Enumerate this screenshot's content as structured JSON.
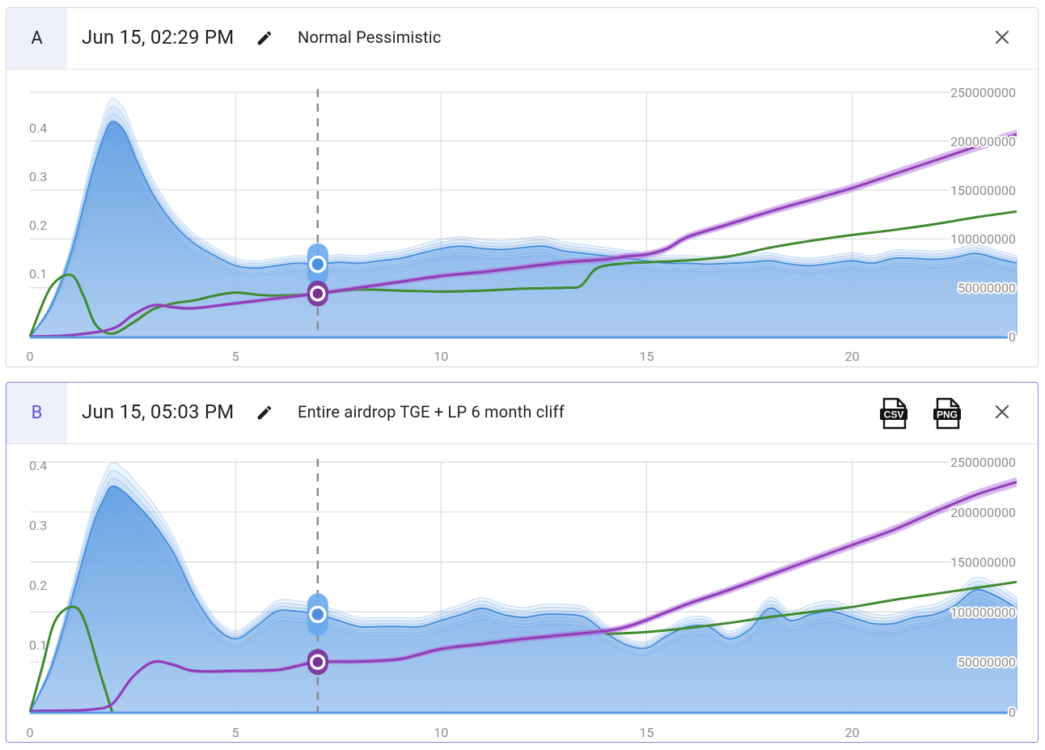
{
  "panels": [
    {
      "letter": "A",
      "date": "Jun 15, 02:29 PM",
      "scenario": "Normal Pessimistic",
      "selected": false,
      "icons": {
        "edit": "pencil-icon",
        "close": "close-icon"
      },
      "chart_data": {
        "type": "area",
        "x_ticks": [
          "0",
          "5",
          "10",
          "15",
          "20"
        ],
        "xlim": [
          0,
          24
        ],
        "y_left_ticks": [
          "0.1",
          "0.2",
          "0.3",
          "0.4"
        ],
        "ylim_left": [
          0,
          0.5
        ],
        "y_right_ticks": [
          "0",
          "50000000",
          "100000000",
          "150000000",
          "200000000",
          "250000000"
        ],
        "ylim_right": [
          0,
          250000000
        ],
        "cursor_x": 7,
        "series": [
          {
            "name": "price",
            "axis": "left",
            "color": "#5aa0e6",
            "x": [
              0,
              0.5,
              1,
              1.5,
              1.8,
              2,
              2.3,
              2.6,
              3,
              3.5,
              4,
              4.5,
              5,
              5.5,
              6,
              6.5,
              7,
              7.5,
              8,
              8.5,
              9,
              9.5,
              10,
              10.5,
              11,
              11.5,
              12,
              12.5,
              13,
              13.5,
              14,
              14.5,
              15,
              15.5,
              16,
              16.5,
              17,
              17.5,
              18,
              18.5,
              19,
              19.5,
              20,
              20.5,
              21,
              21.5,
              22,
              22.5,
              23,
              23.5,
              24
            ],
            "values": [
              0,
              0.06,
              0.17,
              0.33,
              0.41,
              0.44,
              0.42,
              0.36,
              0.29,
              0.23,
              0.19,
              0.165,
              0.145,
              0.14,
              0.145,
              0.15,
              0.148,
              0.152,
              0.15,
              0.155,
              0.16,
              0.17,
              0.18,
              0.185,
              0.18,
              0.178,
              0.182,
              0.185,
              0.175,
              0.17,
              0.165,
              0.16,
              0.155,
              0.15,
              0.15,
              0.148,
              0.15,
              0.152,
              0.155,
              0.148,
              0.145,
              0.15,
              0.155,
              0.15,
              0.16,
              0.16,
              0.158,
              0.162,
              0.17,
              0.16,
              0.15
            ]
          },
          {
            "name": "supply",
            "axis": "right",
            "color": "#8e3fb8",
            "x": [
              0,
              1,
              2,
              2.5,
              3,
              3.5,
              4,
              5,
              6,
              7,
              8,
              9,
              10,
              11,
              12,
              13,
              14,
              14.5,
              15,
              15.5,
              16,
              17,
              18,
              19,
              20,
              21,
              22,
              23,
              24
            ],
            "values": [
              0,
              1500000,
              8000000,
              22000000,
              32000000,
              30000000,
              29000000,
              34000000,
              39000000,
              44000000,
              50000000,
              56000000,
              62000000,
              66000000,
              71000000,
              76000000,
              79000000,
              82000000,
              84000000,
              90000000,
              102000000,
              115000000,
              128000000,
              140000000,
              152000000,
              166000000,
              180000000,
              194000000,
              207000000
            ]
          },
          {
            "name": "circulating",
            "axis": "right",
            "color": "#3f8a2f",
            "x": [
              0,
              0.5,
              1,
              1.3,
              1.6,
              2,
              2.5,
              3,
              3.5,
              4,
              4.5,
              5,
              5.5,
              6,
              7,
              8,
              9,
              10,
              11,
              12,
              13,
              13.4,
              13.8,
              14.5,
              15,
              16,
              17,
              18,
              19,
              20,
              21,
              22,
              23,
              24
            ],
            "values": [
              0,
              50000000,
              63000000,
              42000000,
              12000000,
              3000000,
              14000000,
              28000000,
              34000000,
              37000000,
              42000000,
              45000000,
              43000000,
              42000000,
              44000000,
              48000000,
              47000000,
              46000000,
              47000000,
              49000000,
              50000000,
              52000000,
              70000000,
              75000000,
              76000000,
              78000000,
              82000000,
              91000000,
              98000000,
              104000000,
              109000000,
              115000000,
              122000000,
              128000000
            ]
          }
        ],
        "markers": [
          {
            "series": "price",
            "x": 7
          },
          {
            "series": "supply",
            "x": 7
          }
        ]
      }
    },
    {
      "letter": "B",
      "date": "Jun 15, 05:03 PM",
      "scenario": "Entire airdrop TGE + LP 6 month cliff",
      "selected": true,
      "icons": {
        "edit": "pencil-icon",
        "csv": "csv-file-icon",
        "png": "png-file-icon",
        "close": "close-icon"
      },
      "csv_label": "CSV",
      "png_label": "PNG",
      "chart_data": {
        "type": "area",
        "x_ticks": [
          "0",
          "5",
          "10",
          "15",
          "20"
        ],
        "xlim": [
          0,
          24
        ],
        "y_left_ticks": [
          "0.1",
          "0.2",
          "0.3",
          "0.4"
        ],
        "ylim_left": [
          0,
          0.41
        ],
        "y_right_ticks": [
          "0",
          "50000000",
          "100000000",
          "150000000",
          "200000000",
          "250000000"
        ],
        "ylim_right": [
          0,
          250000000
        ],
        "cursor_x": 7,
        "series": [
          {
            "name": "price",
            "axis": "left",
            "color": "#5aa0e6",
            "x": [
              0,
              0.5,
              1,
              1.5,
              1.8,
              2,
              2.3,
              2.6,
              3,
              3.5,
              4,
              4.5,
              5,
              5.5,
              6,
              6.5,
              7,
              7.5,
              8,
              8.5,
              9,
              9.5,
              10,
              10.5,
              11,
              11.5,
              12,
              12.5,
              13,
              13.5,
              14,
              14.5,
              15,
              15.5,
              16,
              16.5,
              17,
              17.5,
              18,
              18.5,
              19,
              19.5,
              20,
              20.5,
              21,
              21.5,
              22,
              22.5,
              23,
              23.5,
              24
            ],
            "values": [
              0,
              0.07,
              0.18,
              0.3,
              0.35,
              0.37,
              0.36,
              0.34,
              0.31,
              0.26,
              0.19,
              0.14,
              0.12,
              0.14,
              0.165,
              0.165,
              0.16,
              0.15,
              0.14,
              0.14,
              0.14,
              0.14,
              0.15,
              0.16,
              0.17,
              0.16,
              0.155,
              0.16,
              0.16,
              0.155,
              0.13,
              0.11,
              0.105,
              0.125,
              0.14,
              0.14,
              0.12,
              0.135,
              0.17,
              0.15,
              0.16,
              0.165,
              0.155,
              0.145,
              0.145,
              0.155,
              0.16,
              0.175,
              0.2,
              0.19,
              0.17
            ]
          },
          {
            "name": "supply",
            "axis": "right",
            "color": "#8e3fb8",
            "x": [
              0,
              1,
              1.5,
              2,
              2.5,
              3,
              3.5,
              4,
              5,
              6,
              6.5,
              7,
              8,
              9,
              10,
              11,
              12,
              13,
              14,
              14.5,
              15,
              16,
              17,
              18,
              19,
              20,
              21,
              22,
              23,
              24
            ],
            "values": [
              1000000,
              1500000,
              2500000,
              8000000,
              35000000,
              50000000,
              47000000,
              41000000,
              41000000,
              42000000,
              46000000,
              50000000,
              50500000,
              53000000,
              63000000,
              68000000,
              73000000,
              77000000,
              81000000,
              85000000,
              92000000,
              108000000,
              122000000,
              137000000,
              152000000,
              167000000,
              182000000,
              200000000,
              217000000,
              230000000
            ]
          },
          {
            "name": "circulating",
            "axis": "right",
            "color": "#3f8a2f",
            "x": [
              0,
              0.3,
              0.6,
              1,
              1.3,
              1.7,
              2
            ],
            "values": [
              0,
              45000000,
              90000000,
              105000000,
              94000000,
              40000000,
              0
            ],
            "x2": [
              14,
              15,
              16,
              17,
              18,
              19,
              20,
              21,
              22,
              23,
              24
            ],
            "values2": [
              78000000,
              80000000,
              84000000,
              89000000,
              95000000,
              100000000,
              105000000,
              112000000,
              118000000,
              124000000,
              130000000
            ]
          }
        ],
        "markers": [
          {
            "series": "price",
            "x": 7
          },
          {
            "series": "supply",
            "x": 7
          }
        ]
      }
    }
  ]
}
